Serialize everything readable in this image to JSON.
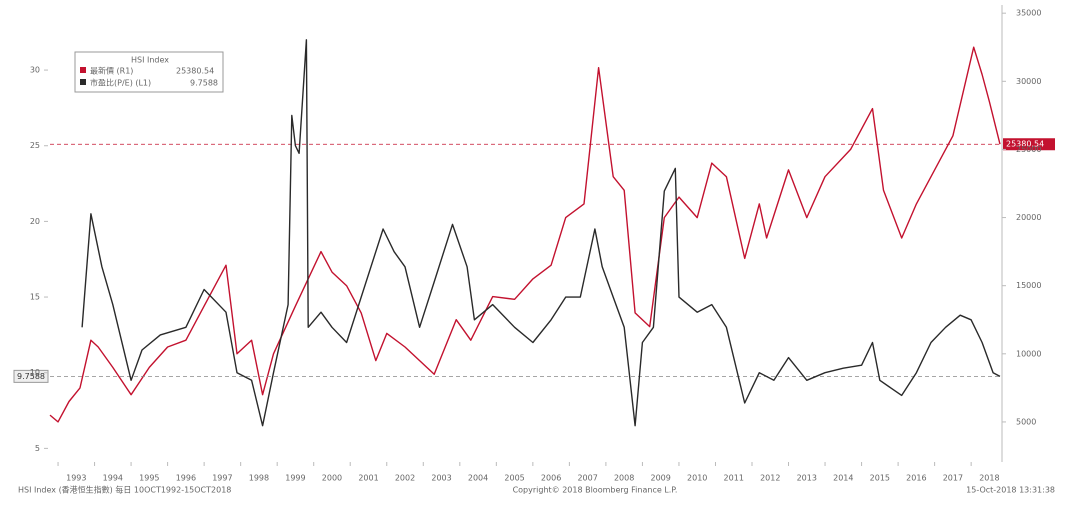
{
  "chart_data": {
    "type": "line",
    "legend_title": "HSI Index",
    "source": "HSI Index (香港恒生指數) 每日 10OCT1992-15OCT2018",
    "copyright": "Copyright© 2018 Bloomberg Finance L.P.",
    "timestamp": "15-Oct-2018 13:31:38",
    "xlim": [
      1992.78,
      2018.79
    ],
    "xticks": [
      1993,
      1994,
      1995,
      1996,
      1997,
      1998,
      1999,
      2000,
      2001,
      2002,
      2003,
      2004,
      2005,
      2006,
      2007,
      2008,
      2009,
      2010,
      2011,
      2012,
      2013,
      2014,
      2015,
      2016,
      2017,
      2018
    ],
    "ylim": [
      4.1,
      34.3
    ],
    "yticks": [
      5,
      10,
      15,
      20,
      25,
      30
    ],
    "y2lim": [
      2060,
      35600
    ],
    "y2ticks": [
      5000,
      10000,
      15000,
      20000,
      25000,
      30000,
      35000
    ],
    "last_value_lines": true,
    "series": [
      {
        "name": "最新價 (R1)",
        "color": "#c3122f",
        "axis": "y2",
        "x": [
          1992.78,
          1993.0,
          1993.3,
          1993.6,
          1993.9,
          1994.1,
          1994.5,
          1995.0,
          1995.5,
          1996.0,
          1996.5,
          1997.0,
          1997.6,
          1997.9,
          1998.3,
          1998.6,
          1998.9,
          1999.5,
          2000.2,
          2000.5,
          2000.9,
          2001.3,
          2001.7,
          2002.0,
          2002.5,
          2003.3,
          2003.9,
          2004.3,
          2004.9,
          2005.5,
          2006.0,
          2006.5,
          2006.9,
          2007.4,
          2007.8,
          2008.2,
          2008.5,
          2008.8,
          2009.2,
          2009.6,
          2010.0,
          2010.5,
          2010.9,
          2011.3,
          2011.8,
          2012.2,
          2012.4,
          2013.0,
          2013.5,
          2014.0,
          2014.7,
          2015.3,
          2015.6,
          2016.1,
          2016.5,
          2016.9,
          2017.5,
          2018.07,
          2018.3,
          2018.5,
          2018.79
        ],
        "values": [
          5500,
          5000,
          6500,
          7500,
          11000,
          10500,
          9000,
          7000,
          9000,
          10500,
          11000,
          13500,
          16500,
          10000,
          11000,
          7000,
          10000,
          13500,
          17500,
          16000,
          15000,
          13000,
          9500,
          11500,
          10500,
          8500,
          12500,
          11000,
          14200,
          14000,
          15500,
          16500,
          20000,
          21000,
          31000,
          23000,
          22000,
          13000,
          12000,
          20000,
          21500,
          20000,
          24000,
          23000,
          17000,
          21000,
          18500,
          23500,
          20000,
          23000,
          25000,
          28000,
          22000,
          18500,
          21000,
          23000,
          26000,
          32500,
          30500,
          28500,
          25380.54
        ]
      },
      {
        "name": "市盈比(P/E) (L1)",
        "color": "#2a2a2a",
        "axis": "y",
        "x": [
          1993.66,
          1993.9,
          1994.2,
          1994.5,
          1995.0,
          1995.3,
          1995.8,
          1996.5,
          1997.0,
          1997.6,
          1997.9,
          1998.3,
          1998.6,
          1998.9,
          1999.3,
          1999.4,
          1999.5,
          1999.6,
          1999.8,
          1999.85,
          2000.2,
          2000.5,
          2000.9,
          2001.9,
          2002.2,
          2002.5,
          2002.9,
          2003.3,
          2003.8,
          2004.2,
          2004.4,
          2004.9,
          2005.5,
          2006.0,
          2006.5,
          2006.9,
          2007.3,
          2007.7,
          2007.9,
          2008.2,
          2008.5,
          2008.8,
          2009.0,
          2009.3,
          2009.6,
          2009.9,
          2010.0,
          2010.5,
          2010.9,
          2011.3,
          2011.8,
          2012.2,
          2012.6,
          2013.0,
          2013.5,
          2014.0,
          2014.5,
          2015.0,
          2015.3,
          2015.5,
          2015.8,
          2016.1,
          2016.5,
          2016.9,
          2017.3,
          2017.7,
          2018.0,
          2018.3,
          2018.6,
          2018.79
        ],
        "values": [
          13,
          20.5,
          17,
          14.5,
          9.5,
          11.5,
          12.5,
          13,
          15.5,
          14,
          10,
          9.5,
          6.5,
          10,
          14.5,
          27,
          25,
          24.5,
          32,
          13,
          14,
          13,
          12,
          19.5,
          18,
          17,
          13,
          16,
          19.8,
          17,
          13.5,
          14.5,
          13,
          12,
          13.5,
          15,
          15,
          19.5,
          17,
          15,
          13,
          6.5,
          12,
          13,
          22,
          23.5,
          15,
          14,
          14.5,
          13,
          8,
          10,
          9.5,
          11,
          9.5,
          10,
          10.3,
          10.5,
          12,
          9.5,
          9,
          8.5,
          10,
          12,
          13,
          13.8,
          13.5,
          12,
          10,
          9.7588
        ]
      }
    ]
  }
}
